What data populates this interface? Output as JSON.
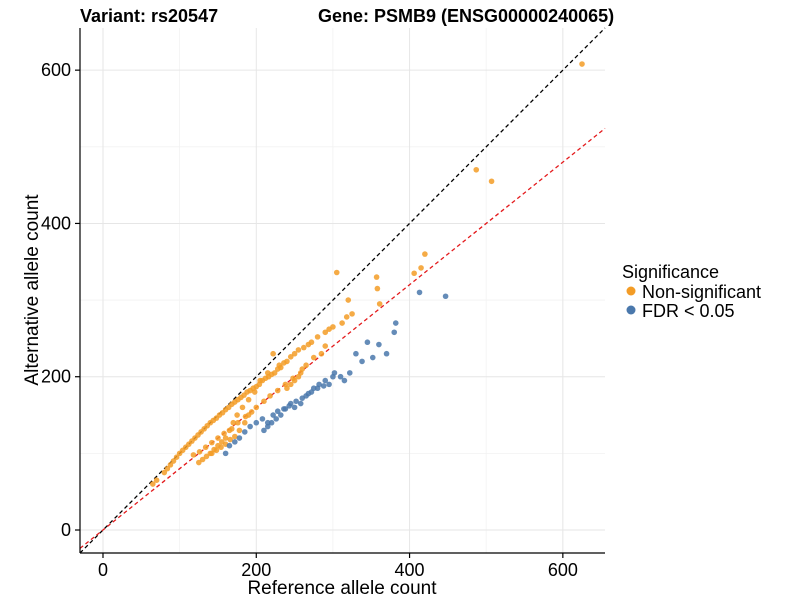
{
  "chart_data": {
    "type": "scatter",
    "title_left": "Variant: rs20547",
    "title_right": "Gene: PSMB9 (ENSG00000240065)",
    "xlabel": "Reference allele count",
    "ylabel": "Alternative allele count",
    "xlim": [
      -30,
      655
    ],
    "ylim": [
      -30,
      655
    ],
    "xticks": [
      0,
      200,
      400,
      600
    ],
    "yticks": [
      0,
      200,
      400,
      600
    ],
    "grid": true,
    "legend": {
      "title": "Significance",
      "position": "right",
      "entries": [
        {
          "label": "Non-significant",
          "color": "#F39C26"
        },
        {
          "label": "FDR < 0.05",
          "color": "#4A78AC"
        }
      ]
    },
    "reference_lines": [
      {
        "name": "identity line",
        "slope": 1.0,
        "intercept": 0,
        "color": "#000000",
        "dash": "dashed"
      },
      {
        "name": "fitted line",
        "slope": 0.8,
        "intercept": 0,
        "color": "#E41A1C",
        "dash": "dashed"
      }
    ],
    "series": [
      {
        "name": "Non-significant",
        "color": "#F39C26",
        "x": [
          625,
          487,
          507,
          420,
          415,
          406,
          305,
          357,
          358,
          320,
          361,
          325,
          318,
          312,
          300,
          295,
          290,
          280,
          272,
          268,
          262,
          255,
          250,
          245,
          240,
          236,
          232,
          228,
          224,
          220,
          216,
          212,
          208,
          204,
          200,
          196,
          192,
          188,
          184,
          180,
          176,
          172,
          168,
          164,
          160,
          156,
          152,
          148,
          144,
          140,
          136,
          132,
          128,
          124,
          120,
          116,
          112,
          108,
          104,
          100,
          96,
          92,
          88,
          84,
          80,
          70,
          65,
          222,
          230,
          215,
          205,
          198,
          190,
          182,
          175,
          170,
          165,
          160,
          155,
          150,
          145,
          140,
          135,
          130,
          125,
          190,
          185,
          178,
          172,
          166,
          160,
          154,
          148,
          142,
          260,
          255,
          250,
          245,
          240,
          275,
          285,
          290,
          265,
          258,
          248,
          238,
          228,
          218,
          210,
          200,
          194,
          186,
          176,
          168,
          158,
          150,
          142,
          134,
          126,
          118
        ],
        "y": [
          608,
          470,
          455,
          360,
          342,
          335,
          336,
          330,
          315,
          300,
          295,
          282,
          278,
          270,
          265,
          262,
          258,
          252,
          245,
          242,
          238,
          235,
          230,
          226,
          220,
          218,
          212,
          210,
          205,
          203,
          200,
          198,
          195,
          190,
          187,
          185,
          182,
          180,
          176,
          173,
          170,
          167,
          164,
          160,
          157,
          153,
          150,
          146,
          143,
          140,
          136,
          132,
          128,
          124,
          120,
          116,
          112,
          108,
          104,
          100,
          95,
          90,
          85,
          80,
          75,
          65,
          60,
          230,
          215,
          205,
          195,
          180,
          170,
          160,
          150,
          140,
          130,
          120,
          115,
          110,
          105,
          100,
          96,
          92,
          88,
          150,
          140,
          130,
          122,
          118,
          112,
          108,
          104,
          100,
          210,
          200,
          195,
          190,
          185,
          225,
          230,
          240,
          215,
          205,
          198,
          190,
          182,
          175,
          168,
          160,
          154,
          148,
          140,
          132,
          126,
          120,
          114,
          108,
          102,
          98
        ]
      },
      {
        "name": "FDR < 0.05",
        "color": "#4A78AC",
        "x": [
          447,
          413,
          382,
          380,
          370,
          360,
          352,
          345,
          338,
          330,
          322,
          315,
          310,
          302,
          295,
          288,
          280,
          272,
          265,
          258,
          250,
          243,
          236,
          228,
          222,
          215,
          208,
          200,
          192,
          185,
          178,
          172,
          165,
          160,
          300,
          290,
          282,
          275,
          268,
          260,
          252,
          245,
          238,
          232,
          226,
          220,
          215,
          210
        ],
        "y": [
          305,
          310,
          270,
          258,
          230,
          242,
          225,
          245,
          220,
          230,
          205,
          195,
          200,
          205,
          190,
          188,
          185,
          180,
          175,
          165,
          160,
          162,
          158,
          155,
          150,
          140,
          145,
          140,
          135,
          128,
          120,
          115,
          110,
          100,
          200,
          195,
          190,
          185,
          178,
          172,
          168,
          165,
          158,
          150,
          145,
          140,
          135,
          130
        ]
      }
    ]
  }
}
